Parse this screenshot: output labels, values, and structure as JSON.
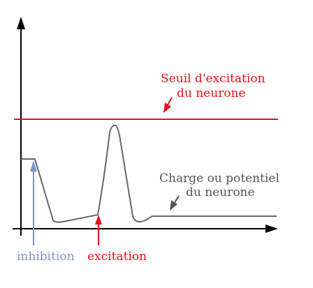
{
  "labels": {
    "threshold_line1": "Seuil d'excitation",
    "threshold_line2": "du neurone",
    "charge_line1": "Charge ou potentiel",
    "charge_line2": "du neurone",
    "inhibition": "inhibition",
    "excitation": "excitation"
  },
  "colors": {
    "axis": "#000000",
    "threshold": "#e8101a",
    "charge_curve": "#666666",
    "inhibition_arrow": "#7c93c9",
    "excitation_arrow": "#e8101a",
    "charge_arrow": "#555555"
  }
}
